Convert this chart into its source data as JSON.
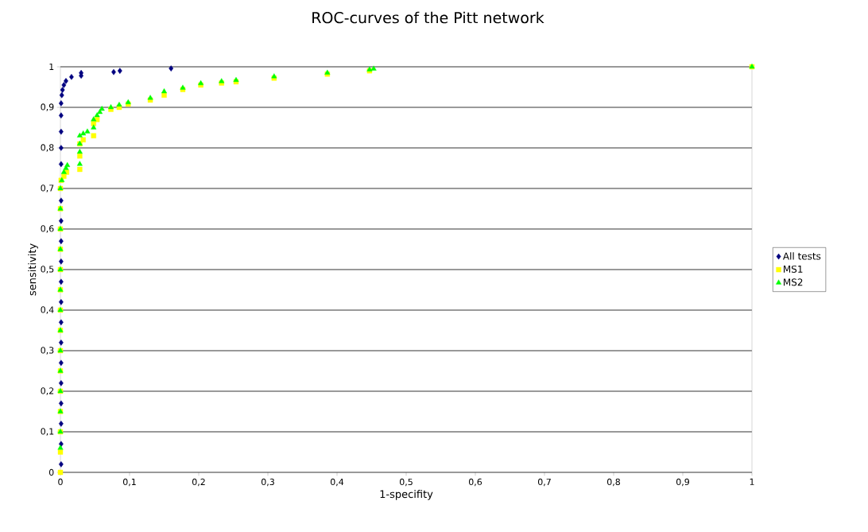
{
  "chart_data": {
    "type": "scatter",
    "title": "ROC-curves of the Pitt network",
    "xlabel": "1-specifity",
    "ylabel": "sensitivity",
    "xlim": [
      0,
      1
    ],
    "ylim": [
      0,
      1
    ],
    "xticks": [
      0,
      {
        "value": 0.1,
        "label": "0,1"
      },
      {
        "value": 0.2,
        "label": "0,2"
      },
      {
        "value": 0.3,
        "label": "0,3"
      },
      {
        "value": 0.4,
        "label": "0,4"
      },
      {
        "value": 0.5,
        "label": "0,5"
      },
      {
        "value": 0.6,
        "label": "0,6"
      },
      {
        "value": 0.7,
        "label": "0,7"
      },
      {
        "value": 0.8,
        "label": "0,8"
      },
      {
        "value": 0.9,
        "label": "0,9"
      },
      1
    ],
    "yticks": [
      0,
      {
        "value": 0.1,
        "label": "0,1"
      },
      {
        "value": 0.2,
        "label": "0,2"
      },
      {
        "value": 0.3,
        "label": "0,3"
      },
      {
        "value": 0.4,
        "label": "0,4"
      },
      {
        "value": 0.5,
        "label": "0,5"
      },
      {
        "value": 0.6,
        "label": "0,6"
      },
      {
        "value": 0.7,
        "label": "0,7"
      },
      {
        "value": 0.8,
        "label": "0,8"
      },
      {
        "value": 0.9,
        "label": "0,9"
      },
      1
    ],
    "grid": "y",
    "legend": "right",
    "series": [
      {
        "name": "All tests",
        "color": "#000080",
        "marker": "diamond",
        "x": [
          0.001,
          0.001,
          0.001,
          0.001,
          0.001,
          0.001,
          0.001,
          0.001,
          0.001,
          0.001,
          0.001,
          0.001,
          0.001,
          0.001,
          0.001,
          0.001,
          0.001,
          0.001,
          0.001,
          0.002,
          0.003,
          0.005,
          0.008,
          0.016,
          0.03,
          0.03,
          0.077,
          0.086,
          0.16
        ],
        "values": [
          0.02,
          0.07,
          0.12,
          0.17,
          0.22,
          0.27,
          0.32,
          0.37,
          0.42,
          0.47,
          0.52,
          0.57,
          0.62,
          0.67,
          0.76,
          0.8,
          0.84,
          0.88,
          0.91,
          0.93,
          0.943,
          0.955,
          0.965,
          0.975,
          0.978,
          0.985,
          0.987,
          0.99,
          0.996
        ]
      },
      {
        "name": "MS1",
        "color": "#ffff00",
        "marker": "square",
        "x": [
          0,
          0,
          0,
          0,
          0,
          0,
          0,
          0,
          0,
          0,
          0,
          0,
          0,
          0,
          0,
          0.001,
          0.005,
          0.009,
          0.028,
          0.028,
          0.028,
          0.033,
          0.048,
          0.048,
          0.053,
          0.073,
          0.085,
          0.098,
          0.13,
          0.15,
          0.177,
          0.203,
          0.233,
          0.254,
          0.309,
          0.386,
          0.447,
          1
        ],
        "values": [
          0.0,
          0.05,
          0.1,
          0.15,
          0.2,
          0.25,
          0.3,
          0.35,
          0.4,
          0.45,
          0.5,
          0.55,
          0.6,
          0.65,
          0.7,
          0.72,
          0.73,
          0.74,
          0.747,
          0.78,
          0.81,
          0.82,
          0.83,
          0.86,
          0.87,
          0.895,
          0.9,
          0.908,
          0.918,
          0.93,
          0.944,
          0.955,
          0.96,
          0.963,
          0.972,
          0.982,
          0.99,
          1
        ]
      },
      {
        "name": "MS2",
        "color": "#00ff00",
        "marker": "triangle",
        "x": [
          0,
          0,
          0,
          0,
          0,
          0,
          0,
          0,
          0,
          0,
          0,
          0,
          0,
          0,
          0.002,
          0.005,
          0.008,
          0.01,
          0.028,
          0.028,
          0.028,
          0.028,
          0.033,
          0.039,
          0.048,
          0.048,
          0.053,
          0.057,
          0.06,
          0.073,
          0.085,
          0.098,
          0.13,
          0.15,
          0.177,
          0.203,
          0.233,
          0.254,
          0.309,
          0.386,
          0.447,
          0.453,
          1
        ],
        "values": [
          0.06,
          0.1,
          0.15,
          0.2,
          0.25,
          0.3,
          0.35,
          0.4,
          0.45,
          0.5,
          0.55,
          0.6,
          0.65,
          0.7,
          0.72,
          0.74,
          0.75,
          0.757,
          0.76,
          0.79,
          0.81,
          0.83,
          0.835,
          0.84,
          0.85,
          0.87,
          0.88,
          0.888,
          0.896,
          0.9,
          0.906,
          0.912,
          0.923,
          0.939,
          0.948,
          0.959,
          0.964,
          0.967,
          0.976,
          0.985,
          0.993,
          0.995,
          1
        ]
      }
    ]
  }
}
